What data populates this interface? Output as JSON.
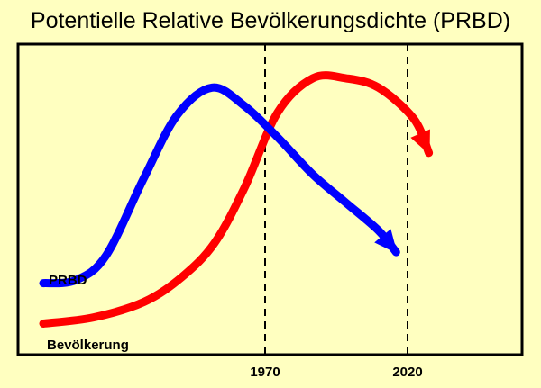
{
  "chart_data": {
    "type": "line",
    "title": "Potentielle Relative Bevölkerungsdichte (PRBD)",
    "xlabel": "",
    "ylabel": "",
    "x_ticks": [
      {
        "label": "1970",
        "value": 1970
      },
      {
        "label": "2020",
        "value": 2020
      }
    ],
    "xlim": [
      1890,
      2090
    ],
    "ylim": [
      0,
      100
    ],
    "grid": false,
    "y_axis_ticks": false,
    "reference_lines": [
      {
        "x": 1970,
        "style": "dashed"
      },
      {
        "x": 2020,
        "style": "dashed"
      }
    ],
    "series": [
      {
        "name": "PRBD",
        "color": "#0000ff",
        "arrowhead": true,
        "points": [
          [
            1900,
            23
          ],
          [
            1913,
            24
          ],
          [
            1925,
            32
          ],
          [
            1940,
            57
          ],
          [
            1953,
            77
          ],
          [
            1967,
            86
          ],
          [
            1980,
            80
          ],
          [
            1993,
            70
          ],
          [
            2007,
            58
          ],
          [
            2020,
            49
          ],
          [
            2033,
            40
          ],
          [
            2040,
            33
          ]
        ]
      },
      {
        "name": "Bevölkerung",
        "color": "#ff0000",
        "arrowhead": true,
        "points": [
          [
            1900,
            10
          ],
          [
            1920,
            12
          ],
          [
            1940,
            17
          ],
          [
            1955,
            25
          ],
          [
            1968,
            36
          ],
          [
            1980,
            54
          ],
          [
            1993,
            78
          ],
          [
            2007,
            89
          ],
          [
            2020,
            89
          ],
          [
            2033,
            86
          ],
          [
            2047,
            76
          ],
          [
            2053,
            65
          ]
        ]
      }
    ],
    "colors": {
      "background": "#ffffc0",
      "plot_border": "#000000",
      "prbd": "#0000ff",
      "population": "#ff0000"
    }
  }
}
